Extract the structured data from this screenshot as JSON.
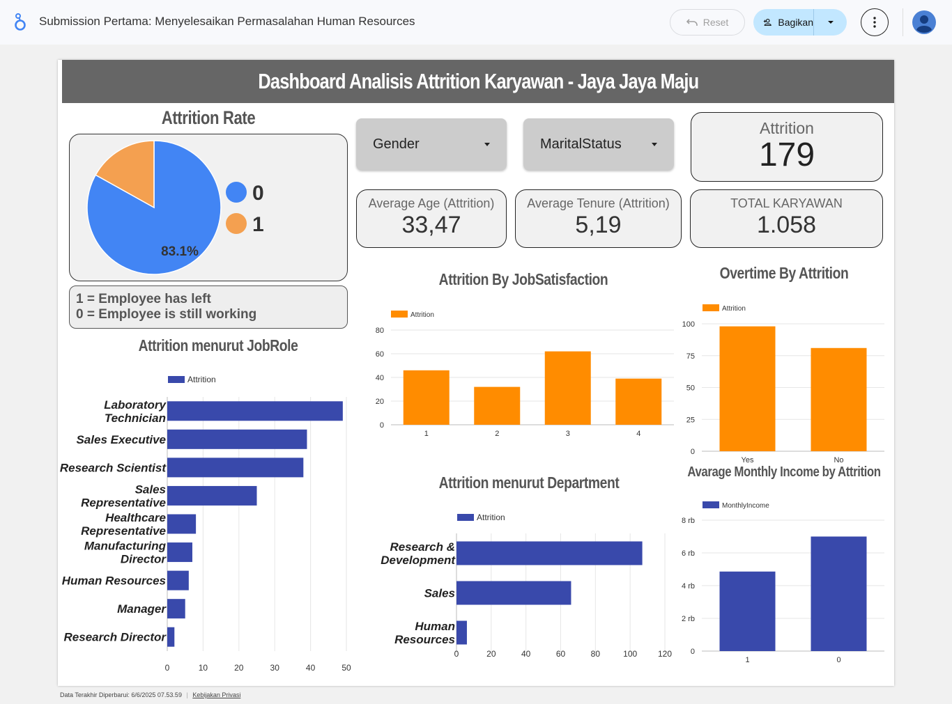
{
  "app": {
    "report_title": "Submission Pertama: Menyelesaikan Permasalahan Human Resources",
    "reset_label": "Reset",
    "share_label": "Bagikan"
  },
  "dashboard": {
    "header": "Dashboard Analisis Attrition Karyawan - Jaya Jaya Maju",
    "legend_note": [
      "1 = Employee has left",
      "0 = Employee is still working"
    ],
    "filters": [
      {
        "label": "Gender"
      },
      {
        "label": "MaritalStatus"
      }
    ],
    "kpis": {
      "attrition": {
        "label": "Attrition",
        "value": "179"
      },
      "avg_age": {
        "label": "Average Age (Attrition)",
        "value": "33,47"
      },
      "avg_tenure": {
        "label": "Average Tenure (Attrition)",
        "value": "5,19"
      },
      "total": {
        "label": "TOTAL KARYAWAN",
        "value": "1.058"
      }
    }
  },
  "footer": {
    "updated": "Data Terakhir Diperbarui: 6/6/2025 07.53.59",
    "privacy": "Kebijakan Privasi"
  },
  "colors": {
    "blue": "#4285f4",
    "orange": "#f4a050",
    "bar_orange": "#ff8c00",
    "bar_navy": "#3949ab"
  },
  "chart_data": [
    {
      "id": "attrition_rate",
      "type": "pie",
      "title": "Attrition Rate",
      "labels": [
        "0",
        "1"
      ],
      "values": [
        83.1,
        16.9
      ],
      "data_labels": [
        "83.1%",
        ""
      ],
      "colors": [
        "#4285f4",
        "#f4a050"
      ],
      "legend": "right"
    },
    {
      "id": "jobsatisfaction",
      "type": "bar",
      "title": "Attrition By JobSatisfaction",
      "categories": [
        "1",
        "2",
        "3",
        "4"
      ],
      "series": [
        {
          "name": "Attrition",
          "values": [
            46,
            32,
            62,
            39
          ]
        }
      ],
      "ylim": [
        0,
        80
      ],
      "yticks": [
        "0",
        "20",
        "40",
        "60",
        "80"
      ],
      "color": "#ff8c00",
      "legend": "top-left"
    },
    {
      "id": "overtime",
      "type": "bar",
      "title": "Overtime By Attrition",
      "categories": [
        "Yes",
        "No"
      ],
      "series": [
        {
          "name": "Attrition",
          "values": [
            98,
            81
          ]
        }
      ],
      "ylim": [
        0,
        100
      ],
      "yticks": [
        "0",
        "25",
        "50",
        "75",
        "100"
      ],
      "color": "#ff8c00",
      "legend": "top-left"
    },
    {
      "id": "jobrole",
      "type": "bar",
      "orientation": "horizontal",
      "title": "Attrition menurut JobRole",
      "categories": [
        "Laboratory Technician",
        "Sales Executive",
        "Research Scientist",
        "Sales Representative",
        "Healthcare Representative",
        "Manufacturing Director",
        "Human Resources",
        "Manager",
        "Research Director"
      ],
      "category_lines": [
        [
          "Laboratory",
          "Technician"
        ],
        [
          "Sales Executive"
        ],
        [
          "Research Scientist"
        ],
        [
          "Sales",
          "Representative"
        ],
        [
          "Healthcare",
          "Representative"
        ],
        [
          "Manufacturing",
          "Director"
        ],
        [
          "Human Resources"
        ],
        [
          "Manager"
        ],
        [
          "Research Director"
        ]
      ],
      "series": [
        {
          "name": "Attrition",
          "values": [
            49,
            39,
            38,
            25,
            8,
            7,
            6,
            5,
            2
          ]
        }
      ],
      "xlim": [
        0,
        50
      ],
      "xticks": [
        "0",
        "10",
        "20",
        "30",
        "40",
        "50"
      ],
      "color": "#3949ab",
      "legend": "top-left"
    },
    {
      "id": "department",
      "type": "bar",
      "orientation": "horizontal",
      "title": "Attrition menurut Department",
      "categories": [
        "Research & Development",
        "Sales",
        "Human Resources"
      ],
      "category_lines": [
        [
          "Research &",
          "Development"
        ],
        [
          "Sales"
        ],
        [
          "Human",
          "Resources"
        ]
      ],
      "series": [
        {
          "name": "Attrition",
          "values": [
            107,
            66,
            6
          ]
        }
      ],
      "xlim": [
        0,
        120
      ],
      "xticks": [
        "0",
        "20",
        "40",
        "60",
        "80",
        "100",
        "120"
      ],
      "color": "#3949ab",
      "legend": "top-left"
    },
    {
      "id": "monthly_income",
      "type": "bar",
      "title": "Avarage Monthly Income by Attrition",
      "categories": [
        "1",
        "0"
      ],
      "series": [
        {
          "name": "MonthlyIncome",
          "values": [
            4860,
            7000
          ]
        }
      ],
      "ylim": [
        0,
        8000
      ],
      "yticks": [
        "0",
        "2 rb",
        "4 rb",
        "6 rb",
        "8 rb"
      ],
      "color": "#3949ab",
      "legend": "top-left"
    }
  ]
}
